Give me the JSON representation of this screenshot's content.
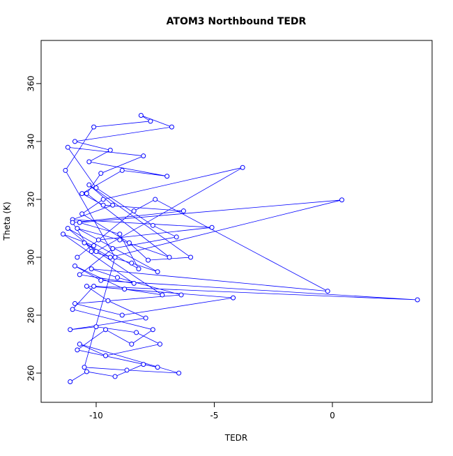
{
  "chart_data": {
    "type": "line",
    "title": "ATOM3 Northbound TEDR",
    "x_label": "TEDR",
    "y_label": "Theta (K)",
    "color": "#0000ff",
    "markers": true,
    "grid": false,
    "xlim": [
      -12.33,
      4.22
    ],
    "ylim": [
      249.9,
      374.9
    ],
    "xticks": [
      -10,
      -5,
      0
    ],
    "yticks": [
      260,
      280,
      300,
      320,
      340,
      360
    ],
    "x": [
      -11.1,
      -10.4,
      -9.2,
      -8.0,
      -7.4,
      -10.8,
      -9.6,
      -8.5,
      -7.6,
      -11.0,
      -10.1,
      3.6,
      -9.8,
      -10.9,
      -8.8,
      -7.2,
      -10.5,
      -9.4,
      0.4,
      -10.7,
      -9.0,
      -8.2,
      -11.2,
      -10.0,
      -3.8,
      -9.7,
      -10.6,
      -8.6,
      -7.8,
      -6.0,
      -10.3,
      -9.3,
      -11.0,
      -5.1,
      -9.9,
      -10.8,
      -8.4,
      -7.5,
      -0.2,
      -10.2,
      -9.1,
      -6.4,
      -10.9,
      -8.9,
      -4.2,
      -10.4,
      -9.5,
      -7.9,
      -11.1,
      -10.0,
      -8.3,
      -7.3,
      -9.6,
      -10.7,
      -6.5,
      -8.7,
      -10.5,
      -9.2,
      -11.3,
      -10.1,
      -7.7,
      -8.1,
      -6.8,
      -10.9,
      -9.4,
      -10.3,
      -7.0,
      -8.9,
      -10.6,
      -9.7,
      -6.3,
      -11.0,
      -10.2,
      -8.5,
      -7.4,
      -10.8,
      -9.0,
      -6.9,
      -10.4,
      -9.8,
      -8.0,
      -11.2,
      -10.0,
      -7.6,
      -6.6,
      -9.3,
      -10.7,
      -8.4,
      -11.4,
      -10.1
    ],
    "values": [
      257,
      260.5,
      258.8,
      263,
      262,
      268,
      275,
      270,
      275,
      282,
      290,
      285.3,
      292,
      297,
      289,
      287,
      305,
      300,
      319.8,
      312,
      308,
      296,
      310,
      302,
      331,
      320,
      315,
      305,
      299,
      300,
      325,
      318,
      313,
      310.3,
      306,
      300,
      316,
      320,
      288.3,
      296,
      293,
      287,
      284,
      280,
      286,
      290,
      285,
      279,
      275,
      276,
      274,
      270,
      266,
      270,
      260,
      261,
      262,
      300,
      330,
      345,
      347,
      349,
      345,
      340,
      337,
      333,
      328,
      330,
      322,
      318,
      316,
      312,
      302,
      298,
      295,
      310,
      306,
      300,
      322,
      329,
      335,
      338,
      324,
      311,
      307,
      303,
      294,
      291,
      308,
      304
    ]
  }
}
